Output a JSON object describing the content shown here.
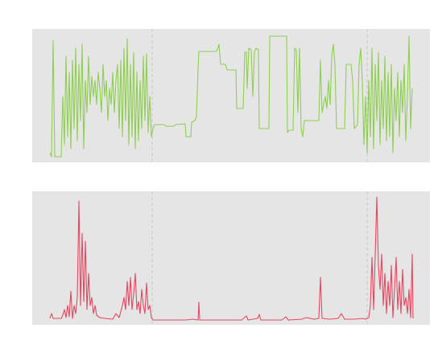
{
  "chart_data": [
    {
      "type": "line",
      "color": "#8fcf50",
      "xlim": [
        0,
        494
      ],
      "ylim": [
        0,
        166
      ],
      "vlines": [
        149,
        416
      ],
      "x": [
        22,
        24,
        26,
        28,
        36,
        38,
        40,
        42,
        44,
        46,
        48,
        50,
        52,
        54,
        56,
        58,
        60,
        62,
        64,
        66,
        68,
        70,
        72,
        74,
        76,
        78,
        80,
        82,
        84,
        86,
        88,
        90,
        92,
        94,
        96,
        98,
        100,
        102,
        104,
        106,
        108,
        110,
        112,
        114,
        116,
        118,
        120,
        122,
        124,
        126,
        128,
        130,
        132,
        134,
        136,
        138,
        140,
        142,
        144,
        146,
        148,
        150,
        152,
        164,
        166,
        176,
        178,
        190,
        191,
        197,
        198,
        202,
        204,
        206,
        207,
        228,
        230,
        232,
        234,
        240,
        242,
        252,
        253,
        254,
        262,
        264,
        266,
        267,
        269,
        272,
        274,
        276,
        278,
        281,
        282,
        294,
        295,
        316,
        317,
        319,
        324,
        326,
        328,
        330,
        332,
        334,
        336,
        338,
        356,
        358,
        360,
        362,
        364,
        366,
        368,
        370,
        372,
        374,
        376,
        378,
        388,
        390,
        396,
        398,
        400,
        404,
        406,
        408,
        410,
        412,
        414,
        416,
        418,
        420,
        422,
        424,
        426,
        428,
        430,
        432,
        434,
        436,
        438,
        440,
        442,
        444,
        446,
        448,
        450,
        452,
        454,
        456,
        458,
        460,
        462,
        464,
        466,
        468,
        470,
        472
      ],
      "values": [
        12,
        7,
        152,
        7,
        7,
        82,
        22,
        132,
        32,
        112,
        17,
        127,
        42,
        142,
        27,
        122,
        52,
        147,
        17,
        102,
        62,
        132,
        72,
        107,
        82,
        102,
        72,
        112,
        92,
        62,
        122,
        82,
        102,
        52,
        92,
        72,
        112,
        62,
        102,
        122,
        42,
        127,
        32,
        142,
        52,
        154,
        22,
        122,
        32,
        137,
        17,
        112,
        27,
        102,
        42,
        132,
        52,
        135,
        37,
        82,
        32,
        42,
        47,
        47,
        45,
        45,
        47,
        48,
        32,
        32,
        50,
        52,
        57,
        117,
        138,
        138,
        140,
        147,
        122,
        122,
        115,
        115,
        115,
        67,
        67,
        137,
        137,
        92,
        142,
        140,
        82,
        137,
        142,
        140,
        42,
        42,
        157,
        157,
        37,
        40,
        40,
        142,
        140,
        62,
        142,
        42,
        32,
        52,
        52,
        127,
        62,
        72,
        82,
        67,
        102,
        72,
        132,
        147,
        122,
        42,
        42,
        122,
        122,
        102,
        42,
        47,
        122,
        142,
        102,
        22,
        82,
        12,
        102,
        32,
        142,
        17,
        122,
        52,
        137,
        22,
        102,
        42,
        132,
        27,
        112,
        32,
        122,
        12,
        92,
        52,
        112,
        32,
        102,
        62,
        122,
        27,
        82,
        157,
        42,
        92
      ]
    },
    {
      "type": "line",
      "color": "#e8475f",
      "xlim": [
        0,
        494
      ],
      "ylim": [
        0,
        166
      ],
      "vlines": [
        149,
        416
      ],
      "x": [
        22,
        24,
        26,
        36,
        38,
        40,
        42,
        44,
        46,
        48,
        50,
        52,
        54,
        56,
        58,
        60,
        62,
        64,
        66,
        68,
        70,
        72,
        74,
        76,
        78,
        80,
        84,
        90,
        100,
        104,
        108,
        112,
        114,
        116,
        118,
        120,
        122,
        124,
        126,
        128,
        130,
        132,
        134,
        136,
        138,
        140,
        142,
        144,
        146,
        148,
        150,
        190,
        200,
        206,
        207,
        208,
        260,
        266,
        268,
        280,
        282,
        284,
        310,
        315,
        318,
        335,
        340,
        350,
        356,
        358,
        360,
        370,
        380,
        384,
        388,
        400,
        410,
        414,
        418,
        420,
        422,
        424,
        426,
        428,
        430,
        432,
        434,
        436,
        438,
        440,
        442,
        444,
        446,
        448,
        450,
        452,
        454,
        456,
        458,
        460,
        462,
        464,
        466,
        468,
        470,
        472,
        473
      ],
      "values": [
        8,
        14,
        8,
        8,
        12,
        19,
        9,
        24,
        10,
        42,
        8,
        24,
        14,
        34,
        154,
        24,
        114,
        29,
        104,
        19,
        64,
        24,
        34,
        14,
        24,
        12,
        9,
        8,
        7,
        14,
        9,
        24,
        34,
        19,
        54,
        24,
        59,
        19,
        39,
        64,
        19,
        29,
        14,
        44,
        24,
        14,
        52,
        19,
        24,
        9,
        6,
        6,
        7,
        6,
        28,
        6,
        6,
        11,
        6,
        8,
        13,
        6,
        6,
        10,
        6,
        7,
        9,
        7,
        8,
        59,
        8,
        7,
        8,
        14,
        7,
        7,
        8,
        7,
        9,
        24,
        84,
        19,
        86,
        159,
        74,
        44,
        88,
        24,
        64,
        14,
        54,
        24,
        74,
        9,
        44,
        84,
        19,
        54,
        14,
        69,
        24,
        34,
        14,
        44,
        9,
        88,
        8
      ]
    }
  ]
}
